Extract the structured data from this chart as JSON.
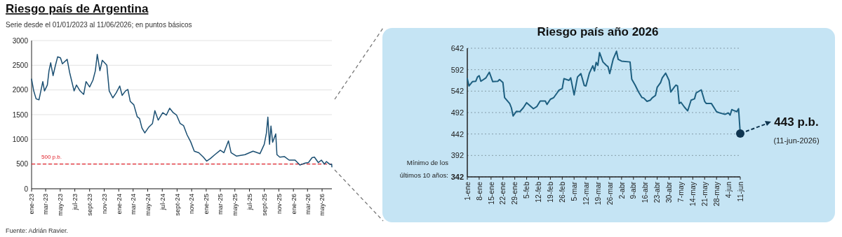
{
  "chart_data": [
    {
      "type": "line",
      "title": "Riesgo país de Argentina",
      "subtitle": "Serie desde el 01/01/2023 al 11/06/2026; en puntos básicos",
      "annotations": [
        "Fuente: Adrián Ravier."
      ],
      "x": [
        "2023-01-01",
        "2023-01-10",
        "2023-01-20",
        "2023-02-01",
        "2023-02-17",
        "2023-02-24",
        "2023-03-08",
        "2023-03-15",
        "2023-03-22",
        "2023-04-01",
        "2023-04-10",
        "2023-04-20",
        "2023-05-02",
        "2023-05-10",
        "2023-05-30",
        "2023-06-09",
        "2023-06-28",
        "2023-07-08",
        "2023-07-23",
        "2023-08-07",
        "2023-08-17",
        "2023-09-01",
        "2023-09-15",
        "2023-09-25",
        "2023-10-03",
        "2023-10-14",
        "2023-10-24",
        "2023-11-12",
        "2023-11-22",
        "2023-12-07",
        "2023-12-21",
        "2024-01-05",
        "2024-01-15",
        "2024-01-29",
        "2024-02-08",
        "2024-02-18",
        "2024-03-04",
        "2024-03-18",
        "2024-03-28",
        "2024-04-07",
        "2024-04-19",
        "2024-05-06",
        "2024-05-21",
        "2024-05-31",
        "2024-06-14",
        "2024-07-03",
        "2024-07-18",
        "2024-08-01",
        "2024-08-16",
        "2024-08-30",
        "2024-09-14",
        "2024-09-28",
        "2024-10-13",
        "2024-10-28",
        "2024-11-12",
        "2024-12-01",
        "2024-12-20",
        "2025-01-03",
        "2025-01-18",
        "2025-02-06",
        "2025-03-01",
        "2025-03-16",
        "2025-04-04",
        "2025-04-15",
        "2025-05-08",
        "2025-06-12",
        "2025-07-16",
        "2025-08-14",
        "2025-09-01",
        "2025-09-10",
        "2025-09-16",
        "2025-09-23",
        "2025-09-29",
        "2025-10-06",
        "2025-10-19",
        "2025-10-24",
        "2025-11-05",
        "2025-11-25",
        "2025-12-14",
        "2026-01-08",
        "2026-01-28",
        "2026-02-19",
        "2026-03-05",
        "2026-03-20",
        "2026-03-30",
        "2026-04-15",
        "2026-04-28",
        "2026-05-11",
        "2026-05-19",
        "2026-06-04",
        "2026-06-10",
        "2026-06-11"
      ],
      "series": [
        {
          "color": "#1b4f72",
          "values": [
            2220,
            1980,
            1820,
            1800,
            2170,
            1980,
            2100,
            2390,
            2550,
            2290,
            2480,
            2670,
            2650,
            2530,
            2620,
            2360,
            1980,
            2100,
            1980,
            1910,
            2170,
            2060,
            2200,
            2390,
            2720,
            2390,
            2600,
            2500,
            1980,
            1840,
            1940,
            2080,
            1890,
            1980,
            2010,
            1770,
            1700,
            1460,
            1420,
            1230,
            1130,
            1250,
            1320,
            1580,
            1390,
            1540,
            1490,
            1630,
            1540,
            1490,
            1320,
            1280,
            1090,
            950,
            760,
            730,
            640,
            560,
            610,
            690,
            780,
            730,
            970,
            730,
            660,
            690,
            760,
            710,
            900,
            1130,
            1450,
            900,
            1270,
            940,
            1110,
            690,
            640,
            650,
            580,
            580,
            480,
            520,
            530,
            630,
            640,
            530,
            580,
            500,
            550,
            490,
            500,
            443
          ]
        }
      ],
      "xlim": [
        "2023-01-01",
        "2026-06-11"
      ],
      "xticks": [
        {
          "value": "2023-01-01",
          "label": "ene-23"
        },
        {
          "value": "2023-03-01",
          "label": "mar-23"
        },
        {
          "value": "2023-05-01",
          "label": "may-23"
        },
        {
          "value": "2023-07-01",
          "label": "jul-23"
        },
        {
          "value": "2023-09-01",
          "label": "sept-23"
        },
        {
          "value": "2023-11-01",
          "label": "nov-23"
        },
        {
          "value": "2024-01-01",
          "label": "ene-24"
        },
        {
          "value": "2024-03-01",
          "label": "mar-24"
        },
        {
          "value": "2024-05-01",
          "label": "may-24"
        },
        {
          "value": "2024-07-01",
          "label": "jul-24"
        },
        {
          "value": "2024-09-01",
          "label": "sept-24"
        },
        {
          "value": "2024-11-01",
          "label": "nov-24"
        },
        {
          "value": "2025-01-01",
          "label": "ene-25"
        },
        {
          "value": "2025-03-01",
          "label": "mar-25"
        },
        {
          "value": "2025-05-01",
          "label": "may-25"
        },
        {
          "value": "2025-07-01",
          "label": "jul-25"
        },
        {
          "value": "2025-09-01",
          "label": "sept-25"
        },
        {
          "value": "2025-11-01",
          "label": "nov-25"
        },
        {
          "value": "2026-01-01",
          "label": "ene-26"
        },
        {
          "value": "2026-03-01",
          "label": "mar-26"
        },
        {
          "value": "2026-05-01",
          "label": "may-26"
        }
      ],
      "ylim": [
        0,
        3000
      ],
      "yticks": [
        0,
        500,
        1000,
        1500,
        2000,
        2500,
        3000
      ],
      "grid": "y",
      "ref_lines": [
        {
          "axis": "y",
          "value": 500,
          "label": "500 p.b.",
          "color": "#e0202a",
          "line_style": "dashed"
        }
      ]
    },
    {
      "type": "line",
      "title": "Riesgo país año 2026",
      "annotations": [
        {
          "text": "443 p.b.",
          "x": "2026-06-11",
          "y": 443
        },
        "(11-jun-2026)",
        "Mínimo de los últimos 10 años:"
      ],
      "x": [
        "2026-01-01",
        "2026-01-02",
        "2026-01-04",
        "2026-01-06",
        "2026-01-07",
        "2026-01-08",
        "2026-01-09",
        "2026-01-12",
        "2026-01-14",
        "2026-01-16",
        "2026-01-19",
        "2026-01-20",
        "2026-01-22",
        "2026-01-23",
        "2026-01-26",
        "2026-01-27",
        "2026-01-28",
        "2026-01-30",
        "2026-02-01",
        "2026-02-03",
        "2026-02-05",
        "2026-02-07",
        "2026-02-09",
        "2026-02-11",
        "2026-02-13",
        "2026-02-16",
        "2026-02-17",
        "2026-02-19",
        "2026-02-21",
        "2026-02-23",
        "2026-02-24",
        "2026-02-26",
        "2026-02-27",
        "2026-03-02",
        "2026-03-03",
        "2026-03-05",
        "2026-03-07",
        "2026-03-09",
        "2026-03-11",
        "2026-03-12",
        "2026-03-14",
        "2026-03-16",
        "2026-03-17",
        "2026-03-18",
        "2026-03-19",
        "2026-03-20",
        "2026-03-22",
        "2026-03-24",
        "2026-03-25",
        "2026-03-26",
        "2026-03-28",
        "2026-03-30",
        "2026-03-31",
        "2026-04-02",
        "2026-04-07",
        "2026-04-08",
        "2026-04-10",
        "2026-04-12",
        "2026-04-14",
        "2026-04-15",
        "2026-04-17",
        "2026-04-19",
        "2026-04-20",
        "2026-04-22",
        "2026-04-23",
        "2026-04-25",
        "2026-04-26",
        "2026-04-28",
        "2026-04-30",
        "2026-05-01",
        "2026-05-03",
        "2026-05-04",
        "2026-05-05",
        "2026-05-06",
        "2026-05-07",
        "2026-05-09",
        "2026-05-11",
        "2026-05-13",
        "2026-05-15",
        "2026-05-16",
        "2026-05-19",
        "2026-05-21",
        "2026-05-22",
        "2026-05-25",
        "2026-05-28",
        "2026-05-30",
        "2026-06-02",
        "2026-06-04",
        "2026-06-05",
        "2026-06-06",
        "2026-06-07",
        "2026-06-09",
        "2026-06-10",
        "2026-06-11"
      ],
      "series": [
        {
          "color": "#1d5f80",
          "values": [
            571,
            554,
            564,
            565,
            575,
            578,
            565,
            573,
            586,
            564,
            565,
            569,
            562,
            527,
            513,
            503,
            484,
            495,
            494,
            503,
            515,
            508,
            501,
            506,
            519,
            519,
            511,
            523,
            527,
            538,
            544,
            548,
            571,
            567,
            573,
            533,
            575,
            583,
            555,
            554,
            584,
            601,
            589,
            609,
            602,
            632,
            610,
            602,
            599,
            583,
            616,
            635,
            616,
            612,
            610,
            570,
            556,
            540,
            527,
            526,
            518,
            521,
            526,
            532,
            551,
            562,
            573,
            584,
            567,
            540,
            551,
            556,
            554,
            513,
            516,
            505,
            496,
            521,
            524,
            538,
            545,
            518,
            513,
            513,
            494,
            491,
            488,
            491,
            486,
            499,
            497,
            494,
            501,
            443
          ]
        }
      ],
      "xlim": [
        "2026-01-01",
        "2026-06-11"
      ],
      "xticks": [
        {
          "value": "2026-01-01",
          "label": "1-ene"
        },
        {
          "value": "2026-01-08",
          "label": "8-ene"
        },
        {
          "value": "2026-01-15",
          "label": "15-ene"
        },
        {
          "value": "2026-01-22",
          "label": "22-ene"
        },
        {
          "value": "2026-01-29",
          "label": "29-ene"
        },
        {
          "value": "2026-02-05",
          "label": "5-feb"
        },
        {
          "value": "2026-02-12",
          "label": "12-feb"
        },
        {
          "value": "2026-02-19",
          "label": "19-feb"
        },
        {
          "value": "2026-02-26",
          "label": "26-feb"
        },
        {
          "value": "2026-03-05",
          "label": "5-mar"
        },
        {
          "value": "2026-03-12",
          "label": "12-mar"
        },
        {
          "value": "2026-03-19",
          "label": "19-mar"
        },
        {
          "value": "2026-03-26",
          "label": "26-mar"
        },
        {
          "value": "2026-04-02",
          "label": "2-abr"
        },
        {
          "value": "2026-04-09",
          "label": "9-abr"
        },
        {
          "value": "2026-04-16",
          "label": "16-abr"
        },
        {
          "value": "2026-04-23",
          "label": "23-abr"
        },
        {
          "value": "2026-04-30",
          "label": "30-abr"
        },
        {
          "value": "2026-05-07",
          "label": "7-may"
        },
        {
          "value": "2026-05-14",
          "label": "14-may"
        },
        {
          "value": "2026-05-21",
          "label": "21-may"
        },
        {
          "value": "2026-05-28",
          "label": "28-may"
        },
        {
          "value": "2026-06-04",
          "label": "4-jun"
        },
        {
          "value": "2026-06-11",
          "label": "11-jun"
        }
      ],
      "ylim": [
        342,
        642
      ],
      "yticks": [
        342,
        392,
        442,
        492,
        542,
        592,
        642
      ],
      "grid": "y"
    }
  ]
}
